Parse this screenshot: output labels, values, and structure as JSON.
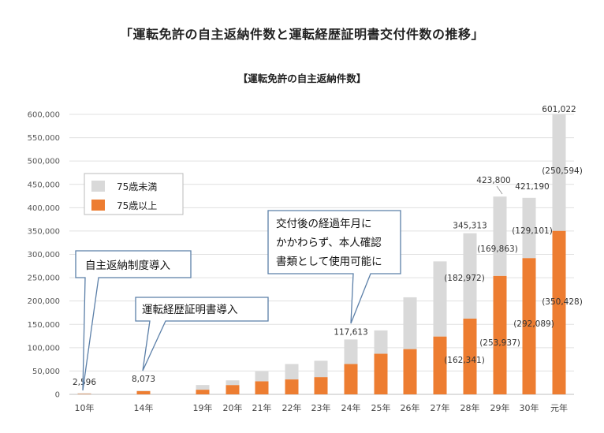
{
  "page_title": "「運転免許の自主返納件数と運転経歴証明書交付件数の推移」",
  "colors": {
    "under75": "#d9d9d9",
    "over75": "#ed7d31",
    "grid": "#e0e0e0",
    "callout_border": "#5b7fa8"
  },
  "chart_data": {
    "type": "bar",
    "stacked": true,
    "title": "【運転免許の自主返納件数】",
    "categories": [
      "10年",
      "14年",
      "19年",
      "20年",
      "21年",
      "22年",
      "23年",
      "24年",
      "25年",
      "26年",
      "27年",
      "28年",
      "29年",
      "30年",
      "元年"
    ],
    "series": [
      {
        "name": "75歳以上",
        "color": "#ed7d31",
        "values": [
          1000,
          7000,
          10000,
          20000,
          28000,
          32000,
          37000,
          65000,
          87000,
          97000,
          124000,
          162341,
          253937,
          292089,
          350428
        ]
      },
      {
        "name": "75歳未満",
        "color": "#d9d9d9",
        "values": [
          1596,
          1073,
          10000,
          10000,
          21000,
          33000,
          35000,
          52613,
          50000,
          111000,
          161000,
          182972,
          169863,
          129101,
          250594
        ]
      }
    ],
    "ylim": [
      0,
      600000
    ],
    "yticks": [
      "0",
      "50,000",
      "100,000",
      "150,000",
      "200,000",
      "250,000",
      "300,000",
      "350,000",
      "400,000",
      "450,000",
      "500,000",
      "550,000",
      "600,000"
    ],
    "total_labels": [
      {
        "index": 0,
        "text": "2,596"
      },
      {
        "index": 1,
        "text": "8,073"
      },
      {
        "index": 7,
        "text": "117,613"
      },
      {
        "index": 11,
        "text": "345,313"
      },
      {
        "index": 12,
        "text": "423,800"
      },
      {
        "index": 13,
        "text": "421,190"
      },
      {
        "index": 14,
        "text": "601,022"
      }
    ],
    "over75_labels": [
      {
        "index": 11,
        "text": "(162,341)"
      },
      {
        "index": 12,
        "text": "(253,937)"
      },
      {
        "index": 13,
        "text": "(292,089)"
      },
      {
        "index": 14,
        "text": "(350,428)"
      }
    ],
    "under75_labels": [
      {
        "index": 11,
        "text": "(182,972)"
      },
      {
        "index": 12,
        "text": "(169,863)"
      },
      {
        "index": 13,
        "text": "(129,101)"
      },
      {
        "index": 14,
        "text": "(250,594)"
      }
    ],
    "legend": [
      {
        "label": "75歳未満",
        "color": "#d9d9d9"
      },
      {
        "label": "75歳以上",
        "color": "#ed7d31"
      }
    ],
    "annotations": [
      {
        "lines": [
          "自主返納制度導入"
        ],
        "index": 0
      },
      {
        "lines": [
          "運転経歴証明書導入"
        ],
        "index": 1
      },
      {
        "lines": [
          "交付後の経過年月に",
          "かかわらず、本人確認",
          "書類として使用可能に"
        ],
        "index": 7
      }
    ],
    "grid": true,
    "legend_position": "upper-left"
  }
}
